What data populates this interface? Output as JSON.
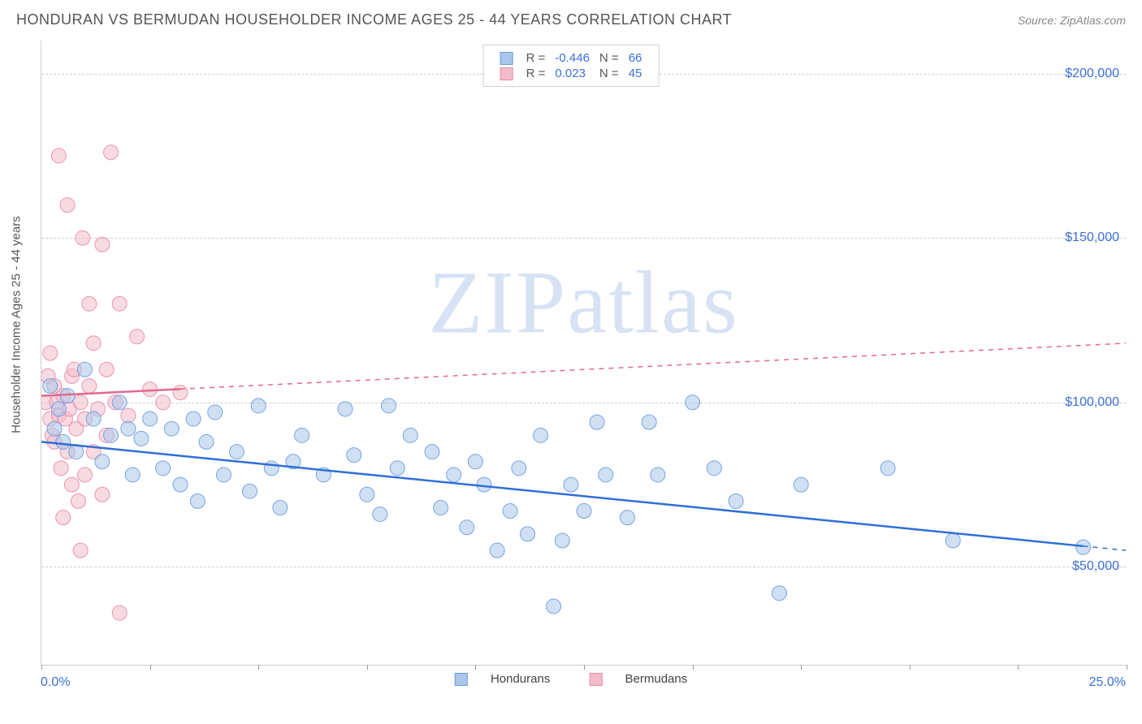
{
  "title": "HONDURAN VS BERMUDAN HOUSEHOLDER INCOME AGES 25 - 44 YEARS CORRELATION CHART",
  "source": "Source: ZipAtlas.com",
  "watermark": "ZIPatlas",
  "chart": {
    "type": "scatter",
    "ylabel": "Householder Income Ages 25 - 44 years",
    "xlim": [
      0,
      25
    ],
    "ylim": [
      20000,
      210000
    ],
    "ytick_values": [
      50000,
      100000,
      150000,
      200000
    ],
    "ytick_labels": [
      "$50,000",
      "$100,000",
      "$150,000",
      "$200,000"
    ],
    "xtick_values": [
      0,
      2.5,
      5,
      7.5,
      10,
      12.5,
      15,
      17.5,
      20,
      22.5,
      25
    ],
    "xtick_left_label": "0.0%",
    "xtick_right_label": "25.0%",
    "grid_color": "#d0d0d0",
    "background_color": "#ffffff",
    "title_fontsize": 18,
    "label_fontsize": 15,
    "tick_fontsize": 16,
    "tick_color": "#3b6fd6",
    "marker_radius": 9,
    "marker_opacity": 0.55,
    "marker_stroke_opacity": 0.9,
    "line_width_solid": 2.5,
    "line_width_dash": 1.5,
    "series": [
      {
        "name": "Hondurans",
        "color_fill": "#aac6ea",
        "color_stroke": "#6b9be0",
        "line_color": "#2f6fd6",
        "R": "-0.446",
        "N": "66",
        "trend": {
          "x1": 0,
          "y1": 88000,
          "x2": 25,
          "y2": 55000,
          "solid_to_x": 24
        },
        "points": [
          [
            0.2,
            105000
          ],
          [
            0.3,
            92000
          ],
          [
            0.4,
            98000
          ],
          [
            0.5,
            88000
          ],
          [
            0.6,
            102000
          ],
          [
            0.8,
            85000
          ],
          [
            1.0,
            110000
          ],
          [
            1.2,
            95000
          ],
          [
            1.4,
            82000
          ],
          [
            1.6,
            90000
          ],
          [
            1.8,
            100000
          ],
          [
            2.0,
            92000
          ],
          [
            2.1,
            78000
          ],
          [
            2.3,
            89000
          ],
          [
            2.5,
            95000
          ],
          [
            2.8,
            80000
          ],
          [
            3.0,
            92000
          ],
          [
            3.2,
            75000
          ],
          [
            3.5,
            95000
          ],
          [
            3.6,
            70000
          ],
          [
            3.8,
            88000
          ],
          [
            4.0,
            97000
          ],
          [
            4.2,
            78000
          ],
          [
            4.5,
            85000
          ],
          [
            4.8,
            73000
          ],
          [
            5.0,
            99000
          ],
          [
            5.3,
            80000
          ],
          [
            5.5,
            68000
          ],
          [
            5.8,
            82000
          ],
          [
            6.0,
            90000
          ],
          [
            6.5,
            78000
          ],
          [
            7.0,
            98000
          ],
          [
            7.2,
            84000
          ],
          [
            7.5,
            72000
          ],
          [
            7.8,
            66000
          ],
          [
            8.0,
            99000
          ],
          [
            8.2,
            80000
          ],
          [
            8.5,
            90000
          ],
          [
            9.0,
            85000
          ],
          [
            9.2,
            68000
          ],
          [
            9.5,
            78000
          ],
          [
            9.8,
            62000
          ],
          [
            10.0,
            82000
          ],
          [
            10.2,
            75000
          ],
          [
            10.5,
            55000
          ],
          [
            10.8,
            67000
          ],
          [
            11.0,
            80000
          ],
          [
            11.2,
            60000
          ],
          [
            11.5,
            90000
          ],
          [
            11.8,
            38000
          ],
          [
            12.0,
            58000
          ],
          [
            12.2,
            75000
          ],
          [
            12.5,
            67000
          ],
          [
            12.8,
            94000
          ],
          [
            13.0,
            78000
          ],
          [
            13.5,
            65000
          ],
          [
            14.0,
            94000
          ],
          [
            14.2,
            78000
          ],
          [
            15.0,
            100000
          ],
          [
            15.5,
            80000
          ],
          [
            16.0,
            70000
          ],
          [
            17.0,
            42000
          ],
          [
            17.5,
            75000
          ],
          [
            19.5,
            80000
          ],
          [
            21.0,
            58000
          ],
          [
            24.0,
            56000
          ]
        ]
      },
      {
        "name": "Bermudans",
        "color_fill": "#f3bccb",
        "color_stroke": "#e88ba6",
        "line_color": "#e06a8f",
        "R": "0.023",
        "N": "45",
        "trend": {
          "x1": 0,
          "y1": 102000,
          "x2": 25,
          "y2": 118000,
          "solid_to_x": 3.2
        },
        "points": [
          [
            0.1,
            100000
          ],
          [
            0.15,
            108000
          ],
          [
            0.2,
            95000
          ],
          [
            0.2,
            115000
          ],
          [
            0.25,
            90000
          ],
          [
            0.3,
            105000
          ],
          [
            0.3,
            88000
          ],
          [
            0.35,
            100000
          ],
          [
            0.4,
            96000
          ],
          [
            0.4,
            175000
          ],
          [
            0.45,
            80000
          ],
          [
            0.5,
            102000
          ],
          [
            0.5,
            65000
          ],
          [
            0.55,
            95000
          ],
          [
            0.6,
            85000
          ],
          [
            0.6,
            160000
          ],
          [
            0.65,
            98000
          ],
          [
            0.7,
            75000
          ],
          [
            0.7,
            108000
          ],
          [
            0.75,
            110000
          ],
          [
            0.8,
            92000
          ],
          [
            0.85,
            70000
          ],
          [
            0.9,
            100000
          ],
          [
            0.9,
            55000
          ],
          [
            0.95,
            150000
          ],
          [
            1.0,
            95000
          ],
          [
            1.0,
            78000
          ],
          [
            1.1,
            130000
          ],
          [
            1.1,
            105000
          ],
          [
            1.2,
            118000
          ],
          [
            1.2,
            85000
          ],
          [
            1.3,
            98000
          ],
          [
            1.4,
            148000
          ],
          [
            1.4,
            72000
          ],
          [
            1.5,
            90000
          ],
          [
            1.5,
            110000
          ],
          [
            1.6,
            176000
          ],
          [
            1.7,
            100000
          ],
          [
            1.8,
            130000
          ],
          [
            1.8,
            36000
          ],
          [
            2.0,
            96000
          ],
          [
            2.2,
            120000
          ],
          [
            2.5,
            104000
          ],
          [
            2.8,
            100000
          ],
          [
            3.2,
            103000
          ]
        ]
      }
    ]
  },
  "legend_top": {
    "stat_label_R": "R =",
    "stat_label_N": "N ="
  }
}
